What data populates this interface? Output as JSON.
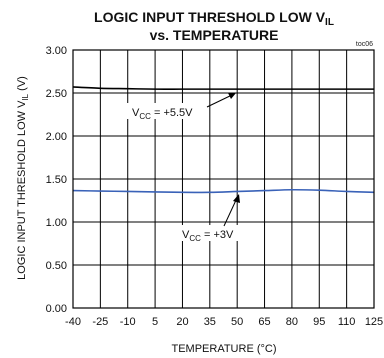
{
  "chart_data": {
    "type": "line",
    "title_line1": "LOGIC INPUT THRESHOLD LOW V",
    "title_line1_sub": "IL",
    "title_line2": "vs. TEMPERATURE",
    "figure_tag": "toc06",
    "xlabel": "TEMPERATURE (°C)",
    "ylabel_main": "LOGIC INPUT THRESHOLD LOW V",
    "ylabel_sub": "IL",
    "ylabel_unit": " (V)",
    "xlim": [
      -40,
      125
    ],
    "ylim": [
      0,
      3
    ],
    "x_ticks": [
      -40,
      -25,
      -10,
      5,
      20,
      35,
      50,
      65,
      80,
      95,
      110,
      125
    ],
    "y_ticks": [
      "0.00",
      "0.50",
      "1.00",
      "1.50",
      "2.00",
      "2.50",
      "3.00"
    ],
    "y_tick_values": [
      0,
      0.5,
      1.0,
      1.5,
      2.0,
      2.5,
      3.0
    ],
    "grid": true,
    "series": [
      {
        "label_main": "V",
        "label_sub": "CC",
        "label_rest": " = +5.5V",
        "color": "#000000",
        "x": [
          -40,
          -25,
          -10,
          5,
          20,
          35,
          50,
          65,
          80,
          95,
          110,
          125
        ],
        "y": [
          2.57,
          2.555,
          2.55,
          2.545,
          2.545,
          2.545,
          2.545,
          2.545,
          2.545,
          2.545,
          2.545,
          2.545
        ]
      },
      {
        "label_main": "V",
        "label_sub": "CC",
        "label_rest": " = +3V",
        "color": "#3a62b8",
        "x": [
          -40,
          -25,
          -10,
          5,
          20,
          35,
          50,
          65,
          80,
          95,
          110,
          125
        ],
        "y": [
          1.365,
          1.36,
          1.355,
          1.35,
          1.345,
          1.345,
          1.355,
          1.365,
          1.375,
          1.37,
          1.355,
          1.345
        ]
      }
    ]
  }
}
